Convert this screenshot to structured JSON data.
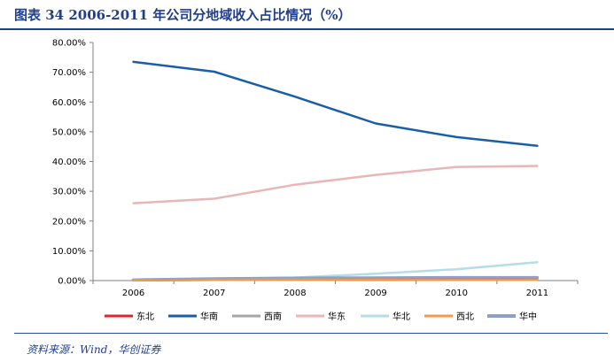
{
  "header": {
    "title": "图表 34   2006-2011 年公司分地域收入占比情况（%）"
  },
  "footer": {
    "source": "资料来源：Wind，华创证券"
  },
  "chart_data": {
    "type": "line",
    "x": [
      "2006",
      "2007",
      "2008",
      "2009",
      "2010",
      "2011"
    ],
    "ylim": [
      0,
      80
    ],
    "yticks": [
      0,
      10,
      20,
      30,
      40,
      50,
      60,
      70,
      80
    ],
    "ytick_labels": [
      "0.00%",
      "10.00%",
      "20.00%",
      "30.00%",
      "40.00%",
      "50.00%",
      "60.00%",
      "70.00%",
      "80.00%"
    ],
    "grid": false,
    "legend_position": "bottom",
    "series": [
      {
        "name": "东北",
        "color": "#e0242a",
        "values": [
          0.1,
          0.2,
          0.2,
          0.3,
          0.3,
          0.3
        ]
      },
      {
        "name": "华南",
        "color": "#1a5ea8",
        "values": [
          73.5,
          70.2,
          61.8,
          52.8,
          48.2,
          45.3
        ]
      },
      {
        "name": "西南",
        "color": "#a6a6a6",
        "values": [
          0.2,
          0.4,
          0.5,
          0.6,
          0.7,
          0.8
        ]
      },
      {
        "name": "华东",
        "color": "#e8b6b6",
        "values": [
          26.0,
          27.5,
          32.2,
          35.5,
          38.2,
          38.5
        ]
      },
      {
        "name": "华北",
        "color": "#b4dde6",
        "values": [
          0.3,
          0.6,
          1.0,
          2.3,
          3.8,
          6.2
        ]
      },
      {
        "name": "西北",
        "color": "#f39a4a",
        "values": [
          0.1,
          0.2,
          0.2,
          0.3,
          0.2,
          0.2
        ]
      },
      {
        "name": "华中",
        "color": "#8e9ec8",
        "values": [
          0.2,
          0.6,
          0.8,
          0.9,
          1.0,
          1.0
        ]
      }
    ]
  }
}
